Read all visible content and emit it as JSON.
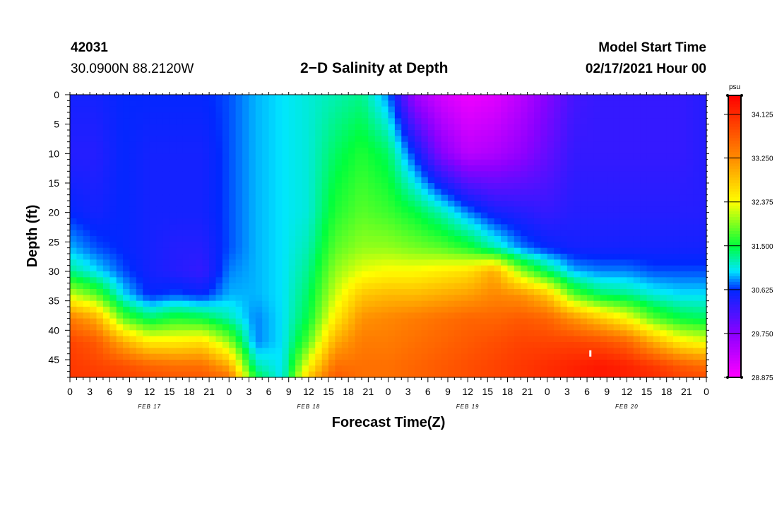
{
  "header": {
    "station_id": "42031",
    "coordinates": "30.0900N 88.2120W",
    "title": "2−D Salinity at Depth",
    "model_start_label": "Model Start Time",
    "model_start_value": "02/17/2021 Hour 00"
  },
  "chart_data": {
    "type": "heatmap",
    "title": "2−D Salinity at Depth",
    "xlabel": "Forecast Time(Z)",
    "ylabel": "Depth (ft)",
    "x_hours_range": [
      0,
      96
    ],
    "y_range": [
      0,
      48
    ],
    "y_inverted": true,
    "x_ticks": [
      0,
      3,
      6,
      9,
      12,
      15,
      18,
      21,
      24,
      27,
      30,
      33,
      36,
      39,
      42,
      45,
      48,
      51,
      54,
      57,
      60,
      63,
      66,
      69,
      72,
      75,
      78,
      81,
      84,
      87,
      90,
      93,
      96
    ],
    "x_tick_labels": [
      "0",
      "3",
      "6",
      "9",
      "12",
      "15",
      "18",
      "21",
      "0",
      "3",
      "6",
      "9",
      "12",
      "15",
      "18",
      "21",
      "0",
      "3",
      "6",
      "9",
      "12",
      "15",
      "18",
      "21",
      "0",
      "3",
      "6",
      "9",
      "12",
      "15",
      "18",
      "21",
      "0"
    ],
    "date_labels": [
      {
        "hour": 12,
        "label": "FEB 17"
      },
      {
        "hour": 36,
        "label": "FEB 18"
      },
      {
        "hour": 60,
        "label": "FEB 19"
      },
      {
        "hour": 84,
        "label": "FEB 20"
      }
    ],
    "y_ticks": [
      0,
      5,
      10,
      15,
      20,
      25,
      30,
      35,
      40,
      45
    ],
    "y_tick_labels": [
      "0",
      "5",
      "10",
      "15",
      "20",
      "25",
      "30",
      "35",
      "40",
      "45"
    ],
    "colorbar": {
      "unit": "psu",
      "min": 28.875,
      "max": 34.5,
      "tick_labels": [
        "34.125",
        "33.250",
        "32.375",
        "31.500",
        "30.625",
        "29.750",
        "28.875"
      ],
      "tick_values": [
        34.125,
        33.25,
        32.375,
        31.5,
        30.625,
        29.75,
        28.875
      ]
    },
    "annotations": [
      {
        "text": "salinity maximum marker",
        "hour": 78.5,
        "depth": 44
      }
    ],
    "field_description": {
      "hours": [
        0,
        4,
        8,
        12,
        16,
        20,
        24,
        28,
        32,
        36,
        40,
        44,
        48,
        52,
        56,
        60,
        64,
        68,
        72,
        76,
        80,
        84,
        88,
        92,
        96
      ],
      "profiles_depth_ft": [
        0,
        10,
        20,
        26,
        30,
        34,
        38,
        42,
        46,
        48
      ],
      "values_psu": [
        [
          30.5,
          30.4,
          30.6,
          30.9,
          31.3,
          32.2,
          33.4,
          33.9,
          34.0,
          34.0
        ],
        [
          30.5,
          30.4,
          30.5,
          30.7,
          31.0,
          31.8,
          33.0,
          33.7,
          33.9,
          34.0
        ],
        [
          30.6,
          30.6,
          30.6,
          30.6,
          30.7,
          31.0,
          31.8,
          33.0,
          33.8,
          33.9
        ],
        [
          30.6,
          30.5,
          30.5,
          30.5,
          30.5,
          30.6,
          31.4,
          32.5,
          33.6,
          33.8
        ],
        [
          30.6,
          30.5,
          30.5,
          30.4,
          30.4,
          30.7,
          31.6,
          32.5,
          33.5,
          33.7
        ],
        [
          30.6,
          30.5,
          30.5,
          30.4,
          30.3,
          30.6,
          31.5,
          32.6,
          33.5,
          33.7
        ],
        [
          30.7,
          30.7,
          30.7,
          30.7,
          30.8,
          30.9,
          31.2,
          32.0,
          33.0,
          33.5
        ],
        [
          30.9,
          30.9,
          30.9,
          30.9,
          30.9,
          30.9,
          30.8,
          30.8,
          31.2,
          31.5
        ],
        [
          31.0,
          31.0,
          31.0,
          31.0,
          31.0,
          31.0,
          31.0,
          31.0,
          31.0,
          31.0
        ],
        [
          31.1,
          31.1,
          31.1,
          31.2,
          31.3,
          31.4,
          31.5,
          31.8,
          32.4,
          32.8
        ],
        [
          31.2,
          31.4,
          31.6,
          31.8,
          32.0,
          32.2,
          32.5,
          33.0,
          33.5,
          33.7
        ],
        [
          31.3,
          31.6,
          31.8,
          32.0,
          32.3,
          32.8,
          33.2,
          33.4,
          33.5,
          33.5
        ],
        [
          30.8,
          31.4,
          31.7,
          32.0,
          32.4,
          32.9,
          33.3,
          33.4,
          33.5,
          33.5
        ],
        [
          29.6,
          30.6,
          31.5,
          31.9,
          32.4,
          32.9,
          33.4,
          33.5,
          33.6,
          33.6
        ],
        [
          29.2,
          29.8,
          31.2,
          31.8,
          32.5,
          33.0,
          33.5,
          33.6,
          33.7,
          33.7
        ],
        [
          29.0,
          29.4,
          30.8,
          31.6,
          32.6,
          33.1,
          33.6,
          33.7,
          33.8,
          33.8
        ],
        [
          29.1,
          29.5,
          30.5,
          31.2,
          33.0,
          33.3,
          33.6,
          33.8,
          33.9,
          33.9
        ],
        [
          29.4,
          29.7,
          30.4,
          30.8,
          32.0,
          33.2,
          33.7,
          33.9,
          34.0,
          34.0
        ],
        [
          29.8,
          30.0,
          30.3,
          30.6,
          31.4,
          32.8,
          33.6,
          33.9,
          34.1,
          34.1
        ],
        [
          30.2,
          30.3,
          30.4,
          30.5,
          30.9,
          31.8,
          33.2,
          33.9,
          34.2,
          34.2
        ],
        [
          30.3,
          30.3,
          30.4,
          30.5,
          30.8,
          31.4,
          32.8,
          33.8,
          34.3,
          34.3
        ],
        [
          30.3,
          30.3,
          30.4,
          30.5,
          30.8,
          31.3,
          32.4,
          33.6,
          34.2,
          34.2
        ],
        [
          30.3,
          30.3,
          30.4,
          30.5,
          30.7,
          31.1,
          31.8,
          33.0,
          34.0,
          34.1
        ],
        [
          30.3,
          30.3,
          30.4,
          30.5,
          30.7,
          31.0,
          31.5,
          32.5,
          33.7,
          33.9
        ],
        [
          30.4,
          30.4,
          30.4,
          30.5,
          30.7,
          31.0,
          31.4,
          32.3,
          33.5,
          33.8
        ]
      ]
    }
  }
}
